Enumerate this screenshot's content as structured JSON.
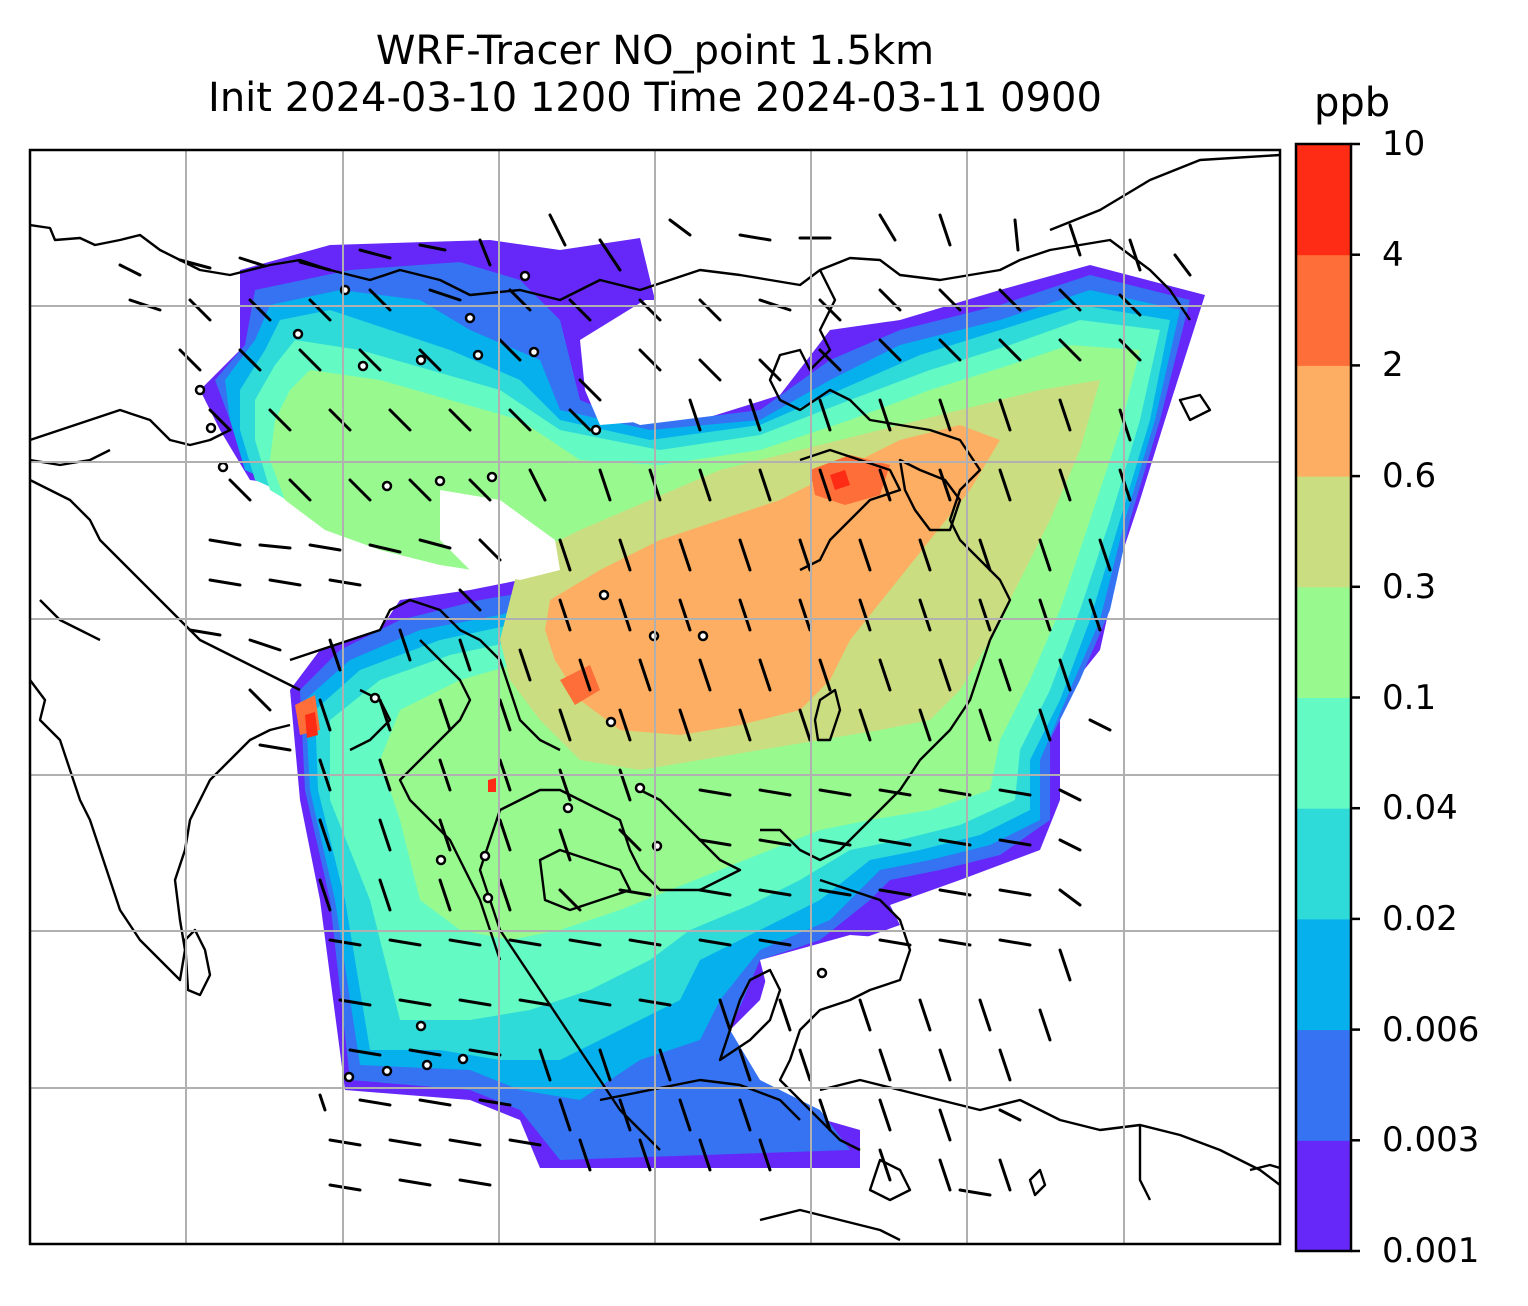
{
  "title": {
    "line1": "WRF-Tracer NO_point 1.5km",
    "line2": "Init 2024-03-10 1200 Time 2024-03-11 0900"
  },
  "colorbar": {
    "unit": "ppb",
    "levels": [
      "0.001",
      "0.003",
      "0.006",
      "0.02",
      "0.04",
      "0.1",
      "0.3",
      "0.6",
      "2",
      "4",
      "10"
    ],
    "colors": [
      "#6528f8",
      "#3573f2",
      "#05b0ec",
      "#2fdbd9",
      "#63fac3",
      "#98f98f",
      "#cbdd81",
      "#fdae62",
      "#fe6e38",
      "#fe2b15"
    ]
  },
  "map": {
    "gridlines": true,
    "features": [
      "coastlines",
      "country borders",
      "wind barbs",
      "point sources"
    ]
  }
}
